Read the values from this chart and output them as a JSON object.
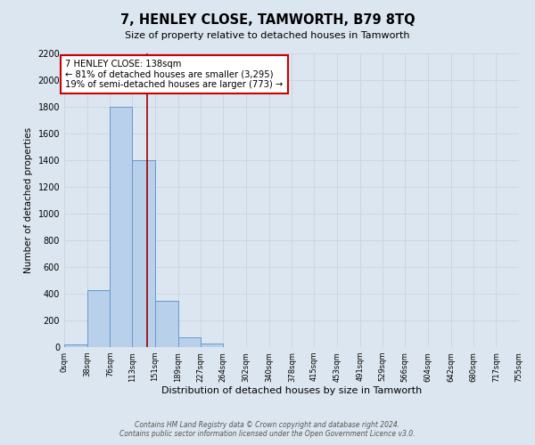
{
  "title": "7, HENLEY CLOSE, TAMWORTH, B79 8TQ",
  "subtitle": "Size of property relative to detached houses in Tamworth",
  "xlabel": "Distribution of detached houses by size in Tamworth",
  "ylabel": "Number of detached properties",
  "bin_edges": [
    0,
    38,
    76,
    113,
    151,
    189,
    227,
    264,
    302,
    340,
    378,
    415,
    453,
    491,
    529,
    566,
    604,
    642,
    680,
    717,
    755
  ],
  "bin_labels": [
    "0sqm",
    "38sqm",
    "76sqm",
    "113sqm",
    "151sqm",
    "189sqm",
    "227sqm",
    "264sqm",
    "302sqm",
    "340sqm",
    "378sqm",
    "415sqm",
    "453sqm",
    "491sqm",
    "529sqm",
    "566sqm",
    "604sqm",
    "642sqm",
    "680sqm",
    "717sqm",
    "755sqm"
  ],
  "counts": [
    20,
    430,
    1800,
    1400,
    350,
    75,
    25,
    0,
    0,
    0,
    0,
    0,
    0,
    0,
    0,
    0,
    0,
    0,
    0,
    0
  ],
  "bar_color": "#b8d0ea",
  "bar_edge_color": "#6699cc",
  "property_value": 138,
  "marker_line_color": "#990000",
  "annotation_text_line1": "7 HENLEY CLOSE: 138sqm",
  "annotation_text_line2": "← 81% of detached houses are smaller (3,295)",
  "annotation_text_line3": "19% of semi-detached houses are larger (773) →",
  "annotation_box_facecolor": "#ffffff",
  "annotation_box_edgecolor": "#cc0000",
  "ylim": [
    0,
    2200
  ],
  "yticks": [
    0,
    200,
    400,
    600,
    800,
    1000,
    1200,
    1400,
    1600,
    1800,
    2000,
    2200
  ],
  "grid_color": "#ccd5e0",
  "background_color": "#dce6f0",
  "footer_line1": "Contains HM Land Registry data © Crown copyright and database right 2024.",
  "footer_line2": "Contains public sector information licensed under the Open Government Licence v3.0."
}
